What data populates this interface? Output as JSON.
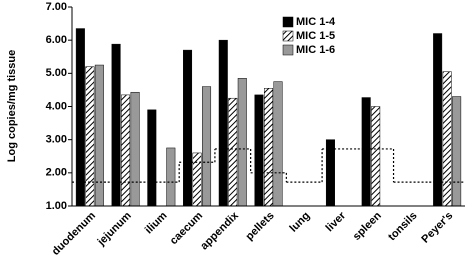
{
  "chart_data": {
    "type": "bar",
    "y_label": "Log copies/mg tissue",
    "categories": [
      "duodenum",
      "jejunum",
      "ilium",
      "caecum",
      "appendix",
      "pellets",
      "lung",
      "liver",
      "spleen",
      "tonsils",
      "Peyer's"
    ],
    "series": [
      {
        "name": "MIC 1-4",
        "color": "#000000",
        "fill_style": "solid",
        "values": [
          6.35,
          5.88,
          3.9,
          5.7,
          6.0,
          4.35,
          null,
          3.0,
          4.27,
          null,
          6.2
        ]
      },
      {
        "name": "MIC 1-5",
        "color": "#000000",
        "fill_style": "hatched",
        "values": [
          5.2,
          4.35,
          null,
          2.6,
          4.25,
          4.55,
          null,
          null,
          4.0,
          null,
          5.05
        ]
      },
      {
        "name": "MIC 1-6",
        "color": "#999999",
        "fill_style": "solid",
        "values": [
          5.25,
          4.43,
          2.75,
          4.6,
          4.85,
          4.75,
          null,
          null,
          null,
          null,
          4.3
        ]
      }
    ],
    "step_line": {
      "color": "#000000",
      "style": "dotted",
      "values": [
        1.72,
        1.72,
        1.72,
        2.32,
        2.72,
        2.0,
        1.72,
        2.72,
        2.72,
        1.72,
        1.72
      ]
    },
    "ylim": [
      1,
      7
    ],
    "yticks": [
      {
        "value": 1,
        "label": "1.00"
      },
      {
        "value": 2,
        "label": "2.00"
      },
      {
        "value": 3,
        "label": "3.00"
      },
      {
        "value": 4,
        "label": "4.00"
      },
      {
        "value": 5,
        "label": "5.00"
      },
      {
        "value": 6,
        "label": "6.00"
      },
      {
        "value": 7,
        "label": "7.00"
      }
    ],
    "grid": false,
    "legend": "top-right"
  }
}
